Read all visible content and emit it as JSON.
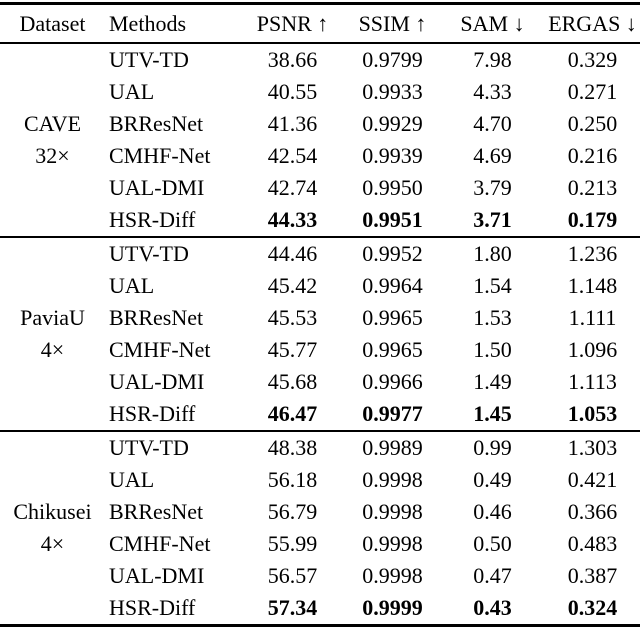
{
  "page": {
    "background_color": "#ffffff",
    "text_color": "#000000"
  },
  "table": {
    "headers": [
      "Dataset",
      "Methods",
      "PSNR ↑",
      "SSIM ↑",
      "SAM ↓",
      "ERGAS ↓"
    ],
    "groups": [
      {
        "dataset": [
          "CAVE",
          "32×"
        ],
        "rows": [
          {
            "method": "UTV-TD",
            "psnr": "38.66",
            "ssim": "0.9799",
            "sam": "7.98",
            "ergas": "0.329"
          },
          {
            "method": "UAL",
            "psnr": "40.55",
            "ssim": "0.9933",
            "sam": "4.33",
            "ergas": "0.271"
          },
          {
            "method": "BRResNet",
            "psnr": "41.36",
            "ssim": "0.9929",
            "sam": "4.70",
            "ergas": "0.250"
          },
          {
            "method": "CMHF-Net",
            "psnr": "42.54",
            "ssim": "0.9939",
            "sam": "4.69",
            "ergas": "0.216"
          },
          {
            "method": "UAL-DMI",
            "psnr": "42.74",
            "ssim": "0.9950",
            "sam": "3.79",
            "ergas": "0.213"
          },
          {
            "method": "HSR-Diff",
            "psnr": "44.33",
            "ssim": "0.9951",
            "sam": "3.71",
            "ergas": "0.179",
            "best": true
          }
        ]
      },
      {
        "dataset": [
          "PaviaU",
          "4×"
        ],
        "rows": [
          {
            "method": "UTV-TD",
            "psnr": "44.46",
            "ssim": "0.9952",
            "sam": "1.80",
            "ergas": "1.236"
          },
          {
            "method": "UAL",
            "psnr": "45.42",
            "ssim": "0.9964",
            "sam": "1.54",
            "ergas": "1.148"
          },
          {
            "method": "BRResNet",
            "psnr": "45.53",
            "ssim": "0.9965",
            "sam": "1.53",
            "ergas": "1.111"
          },
          {
            "method": "CMHF-Net",
            "psnr": "45.77",
            "ssim": "0.9965",
            "sam": "1.50",
            "ergas": "1.096"
          },
          {
            "method": "UAL-DMI",
            "psnr": "45.68",
            "ssim": "0.9966",
            "sam": "1.49",
            "ergas": "1.113"
          },
          {
            "method": "HSR-Diff",
            "psnr": "46.47",
            "ssim": "0.9977",
            "sam": "1.45",
            "ergas": "1.053",
            "best": true
          }
        ]
      },
      {
        "dataset": [
          "Chikusei",
          "4×"
        ],
        "rows": [
          {
            "method": "UTV-TD",
            "psnr": "48.38",
            "ssim": "0.9989",
            "sam": "0.99",
            "ergas": "1.303"
          },
          {
            "method": "UAL",
            "psnr": "56.18",
            "ssim": "0.9998",
            "sam": "0.49",
            "ergas": "0.421"
          },
          {
            "method": "BRResNet",
            "psnr": "56.79",
            "ssim": "0.9998",
            "sam": "0.46",
            "ergas": "0.366"
          },
          {
            "method": "CMHF-Net",
            "psnr": "55.99",
            "ssim": "0.9998",
            "sam": "0.50",
            "ergas": "0.483"
          },
          {
            "method": "UAL-DMI",
            "psnr": "56.57",
            "ssim": "0.9998",
            "sam": "0.47",
            "ergas": "0.387"
          },
          {
            "method": "HSR-Diff",
            "psnr": "57.34",
            "ssim": "0.9999",
            "sam": "0.43",
            "ergas": "0.324",
            "best": true
          }
        ]
      }
    ]
  }
}
